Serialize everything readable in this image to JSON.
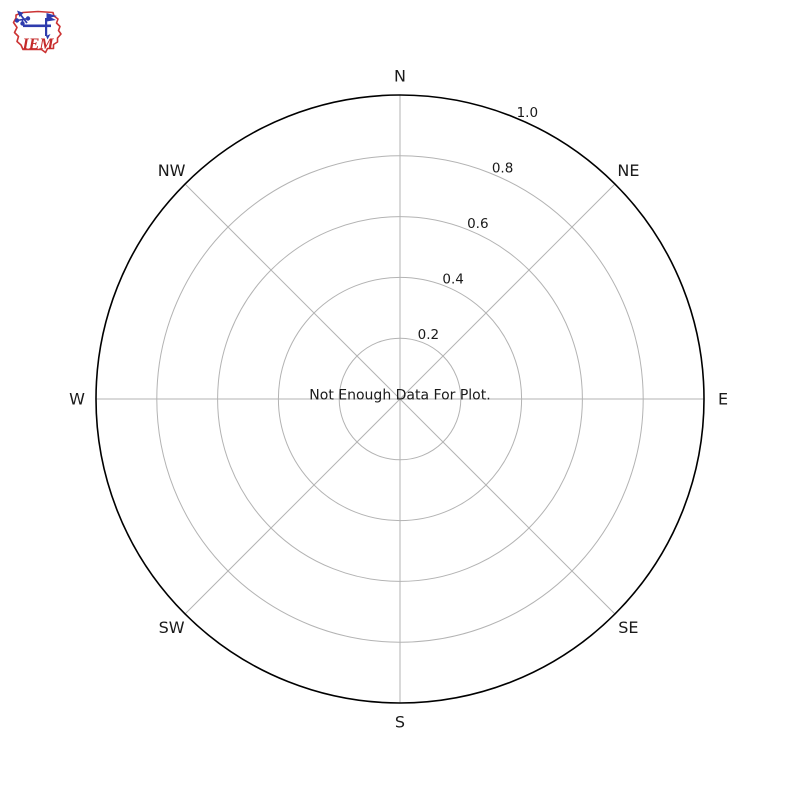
{
  "page": {
    "background": "#ffffff"
  },
  "logo": {
    "alt": "Iowa Environmental Mesonet logo",
    "text": "IEM",
    "outline_color": "#cc3333",
    "instrument_color": "#2e3bad",
    "text_color": "#c42a2a"
  },
  "chart_data": {
    "type": "polar",
    "subtype": "windrose",
    "title": "",
    "center_note": "Not Enough Data For Plot.",
    "direction_labels": [
      "N",
      "NE",
      "E",
      "SE",
      "S",
      "SW",
      "W",
      "NW"
    ],
    "radial_tick_labels": [
      "0.2",
      "0.4",
      "0.6",
      "0.8",
      "1.0"
    ],
    "radial_tick_values": [
      0.2,
      0.4,
      0.6,
      0.8,
      1.0
    ],
    "rlim": [
      0,
      1.0
    ],
    "grid": true,
    "legend": false,
    "series": [],
    "colors": {
      "outer_ring": "#000000",
      "grid": "#b3b3b3",
      "label_text": "#1a1a1a"
    }
  }
}
